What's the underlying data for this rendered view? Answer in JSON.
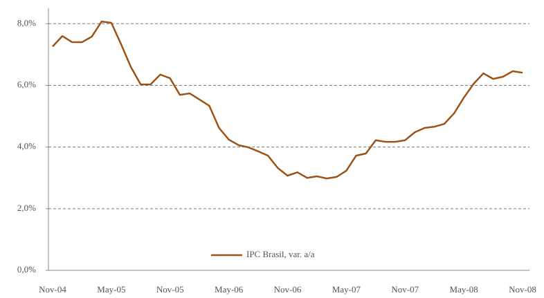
{
  "chart_data": {
    "type": "line",
    "categories": [
      "Nov-04",
      null,
      null,
      null,
      null,
      null,
      "May-05",
      null,
      null,
      null,
      null,
      null,
      "Nov-05",
      null,
      null,
      null,
      null,
      null,
      "May-06",
      null,
      null,
      null,
      null,
      null,
      "Nov-06",
      null,
      null,
      null,
      null,
      null,
      "May-07",
      null,
      null,
      null,
      null,
      null,
      "Nov-07",
      null,
      null,
      null,
      null,
      null,
      "May-08",
      null,
      null,
      null,
      null,
      null,
      "Nov-08"
    ],
    "series": [
      {
        "name": "IPC Brasil, var. a/a",
        "color": "#9a5216",
        "values": [
          7.26,
          7.6,
          7.4,
          7.4,
          7.58,
          8.07,
          8.03,
          7.33,
          6.59,
          6.03,
          6.03,
          6.35,
          6.23,
          5.69,
          5.74,
          5.54,
          5.34,
          4.62,
          4.24,
          4.06,
          3.99,
          3.86,
          3.72,
          3.32,
          3.07,
          3.18,
          3.0,
          3.05,
          2.98,
          3.03,
          3.23,
          3.72,
          3.79,
          4.22,
          4.17,
          4.17,
          4.22,
          4.48,
          4.62,
          4.66,
          4.75,
          5.09,
          5.6,
          6.05,
          6.39,
          6.21,
          6.28,
          6.46,
          6.41
        ]
      }
    ],
    "ylim": [
      0,
      8.5
    ],
    "yticks": [
      {
        "value": 0,
        "label": "0,0%"
      },
      {
        "value": 2,
        "label": "2,0%"
      },
      {
        "value": 4,
        "label": "4,0%"
      },
      {
        "value": 6,
        "label": "6,0%"
      },
      {
        "value": 8,
        "label": "8,0%"
      }
    ],
    "grid": true,
    "legend": "bottom"
  }
}
